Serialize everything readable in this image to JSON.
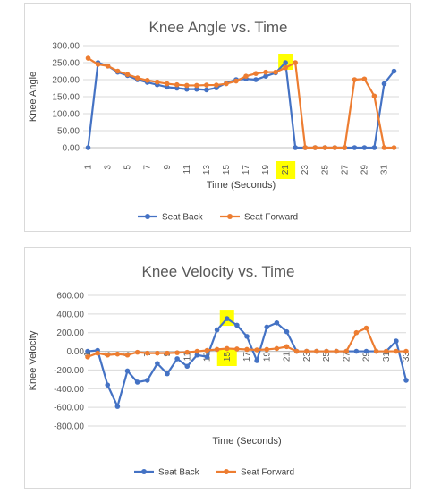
{
  "chart_data": [
    {
      "type": "line",
      "title": "Knee Angle vs. Time",
      "xlabel": "Time (Seconds)",
      "ylabel": "Knee Angle",
      "ylim": [
        0,
        300
      ],
      "yticks": [
        "0.00",
        "50.00",
        "100.00",
        "150.00",
        "200.00",
        "250.00",
        "300.00"
      ],
      "x": [
        1,
        2,
        3,
        4,
        5,
        6,
        7,
        8,
        9,
        10,
        11,
        12,
        13,
        14,
        15,
        16,
        17,
        18,
        19,
        20,
        21,
        22,
        23,
        24,
        25,
        26,
        27,
        28,
        29,
        30,
        31,
        32
      ],
      "xtick_labels": [
        "1",
        "3",
        "5",
        "7",
        "9",
        "11",
        "13",
        "15",
        "17",
        "19",
        "21",
        "23",
        "25",
        "27",
        "29",
        "31"
      ],
      "grid": true,
      "legend": "bottom",
      "highlight": {
        "x": 21,
        "series": "Seat Back",
        "color": "#ffff00"
      },
      "series": [
        {
          "name": "Seat Back",
          "color": "#4472c4",
          "values": [
            0,
            250,
            240,
            222,
            212,
            200,
            192,
            185,
            178,
            175,
            172,
            172,
            170,
            176,
            190,
            200,
            202,
            200,
            210,
            220,
            250,
            0,
            0,
            0,
            0,
            0,
            0,
            0,
            0,
            0,
            188,
            225
          ]
        },
        {
          "name": "Seat Forward",
          "color": "#ed7d31",
          "values": [
            263,
            245,
            240,
            225,
            215,
            205,
            198,
            193,
            188,
            185,
            183,
            183,
            184,
            184,
            188,
            196,
            210,
            218,
            222,
            222,
            235,
            250,
            0,
            0,
            0,
            0,
            0,
            200,
            202,
            152,
            0,
            0
          ]
        }
      ]
    },
    {
      "type": "line",
      "title": "Knee Velocity vs. Time",
      "xlabel": "Time (Seconds)",
      "ylabel": "Knee Velocity",
      "ylim": [
        -800,
        600
      ],
      "yticks": [
        "-800.00",
        "-600.00",
        "-400.00",
        "-200.00",
        "0.00",
        "200.00",
        "400.00",
        "600.00"
      ],
      "x": [
        1,
        2,
        3,
        4,
        5,
        6,
        7,
        8,
        9,
        10,
        11,
        12,
        13,
        14,
        15,
        16,
        17,
        18,
        19,
        20,
        21,
        22,
        23,
        24,
        25,
        26,
        27,
        28,
        29,
        30,
        31,
        32,
        33
      ],
      "xtick_labels": [
        "1",
        "3",
        "5",
        "7",
        "9",
        "11",
        "13",
        "15",
        "17",
        "19",
        "21",
        "23",
        "25",
        "27",
        "29",
        "31",
        "33"
      ],
      "grid": true,
      "legend": "bottom",
      "highlight": {
        "x": 15,
        "series": "Seat Back",
        "color": "#ffff00"
      },
      "series": [
        {
          "name": "Seat Back",
          "color": "#4472c4",
          "values": [
            0,
            10,
            -360,
            -590,
            -210,
            -330,
            -310,
            -130,
            -240,
            -80,
            -160,
            -40,
            -60,
            230,
            350,
            280,
            160,
            -100,
            260,
            305,
            210,
            0,
            0,
            0,
            0,
            0,
            0,
            0,
            0,
            0,
            0,
            110,
            -310
          ]
        },
        {
          "name": "Seat Forward",
          "color": "#ed7d31",
          "values": [
            -60,
            -20,
            -40,
            -30,
            -40,
            -10,
            -20,
            -20,
            -20,
            -15,
            -10,
            0,
            10,
            20,
            30,
            25,
            20,
            15,
            20,
            30,
            50,
            0,
            0,
            0,
            0,
            0,
            0,
            200,
            250,
            0,
            0,
            0,
            0
          ]
        }
      ]
    }
  ]
}
